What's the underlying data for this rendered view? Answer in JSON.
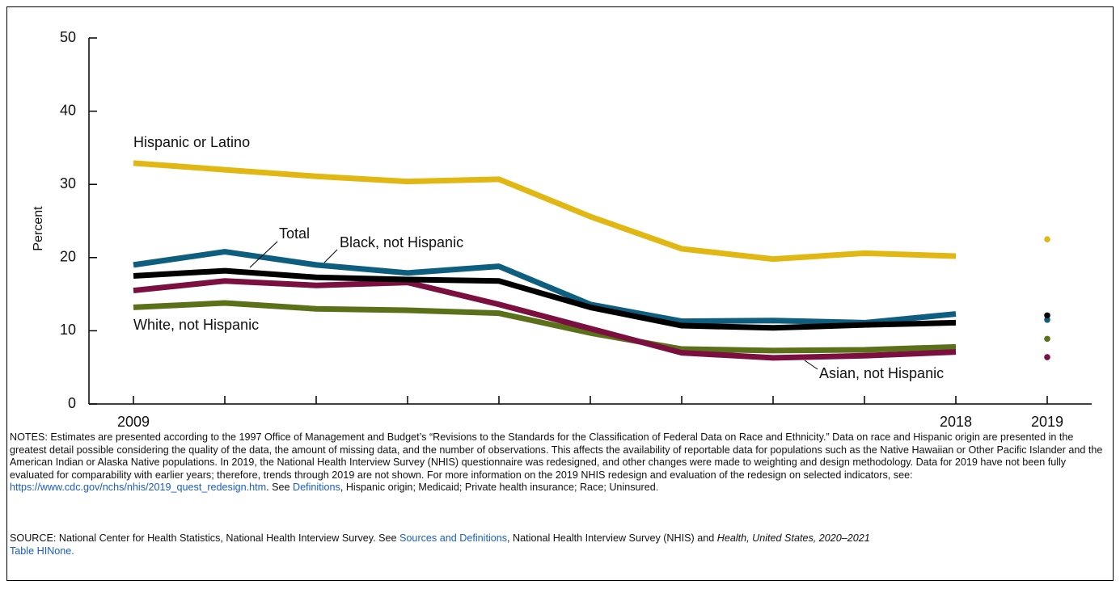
{
  "chart_data": {
    "type": "line",
    "categories": [
      "2009",
      null,
      null,
      null,
      null,
      null,
      null,
      null,
      null,
      "2018",
      "2019"
    ],
    "separate_last_point": true,
    "ylabel": "Percent",
    "ylim": [
      0,
      50
    ],
    "yticks": [
      0,
      10,
      20,
      30,
      40,
      50
    ],
    "series": [
      {
        "name": "Hispanic or Latino",
        "color": "#e1b813",
        "values": [
          32.9,
          32.0,
          31.1,
          30.4,
          30.7,
          25.6,
          21.2,
          19.8,
          20.6,
          20.2,
          22.5
        ]
      },
      {
        "name": "White, not Hispanic",
        "color": "#5b7119",
        "values": [
          13.2,
          13.8,
          13.0,
          12.8,
          12.4,
          9.7,
          7.5,
          7.3,
          7.4,
          7.8,
          8.9
        ]
      },
      {
        "name": "Asian, not Hispanic",
        "color": "#7b0f40",
        "values": [
          15.5,
          16.8,
          16.2,
          16.6,
          13.6,
          10.3,
          7.0,
          6.3,
          6.6,
          7.1,
          6.4
        ]
      },
      {
        "name": "Black, not Hispanic",
        "color": "#0e5e7f",
        "values": [
          19.0,
          20.8,
          19.0,
          17.9,
          18.8,
          13.6,
          11.3,
          11.4,
          11.1,
          12.3,
          11.5
        ]
      },
      {
        "name": "Total",
        "color": "#000000",
        "values": [
          17.5,
          18.2,
          17.3,
          17.0,
          16.8,
          13.2,
          10.7,
          10.4,
          10.8,
          11.1,
          12.1
        ]
      }
    ]
  },
  "notes": [
    "NOTES: Estimates are presented according to the 1997 Office of Management and Budget’s “Revisions to the Standards for the Classification of Federal Data on Race and Ethnicity.” Data on race and Hispanic origin are presented in the greatest detail possible considering the quality of the data, the amount of missing data, and the number of observations. This affects the availability of reportable data for populations such as the Native Hawaiian or Other Pacific Islander and the American Indian or Alaska Native populations. In 2019, the National Health Interview Survey (NHIS) questionnaire was redesigned, and other changes were made to weighting and design methodology. Data for 2019 have not been fully evaluated for comparability with earlier years; therefore, trends through 2019 are not shown. For more information on the 2019 NHIS redesign and evaluation of the redesign on selected indicators, see: ",
    "https://www.cdc.gov/nchs/nhis/2019_quest_redesign.htm",
    ". See ",
    "Definitions",
    ", Hispanic origin; Medicaid; Private health insurance; Race; Uninsured."
  ],
  "source": [
    "SOURCE: National Center for Health Statistics, National Health Interview Survey. See ",
    "Sources and Definitions",
    ", National Health Interview Survey (NHIS) and ",
    "Health, United States, 2020–2021",
    "Table HINone."
  ]
}
